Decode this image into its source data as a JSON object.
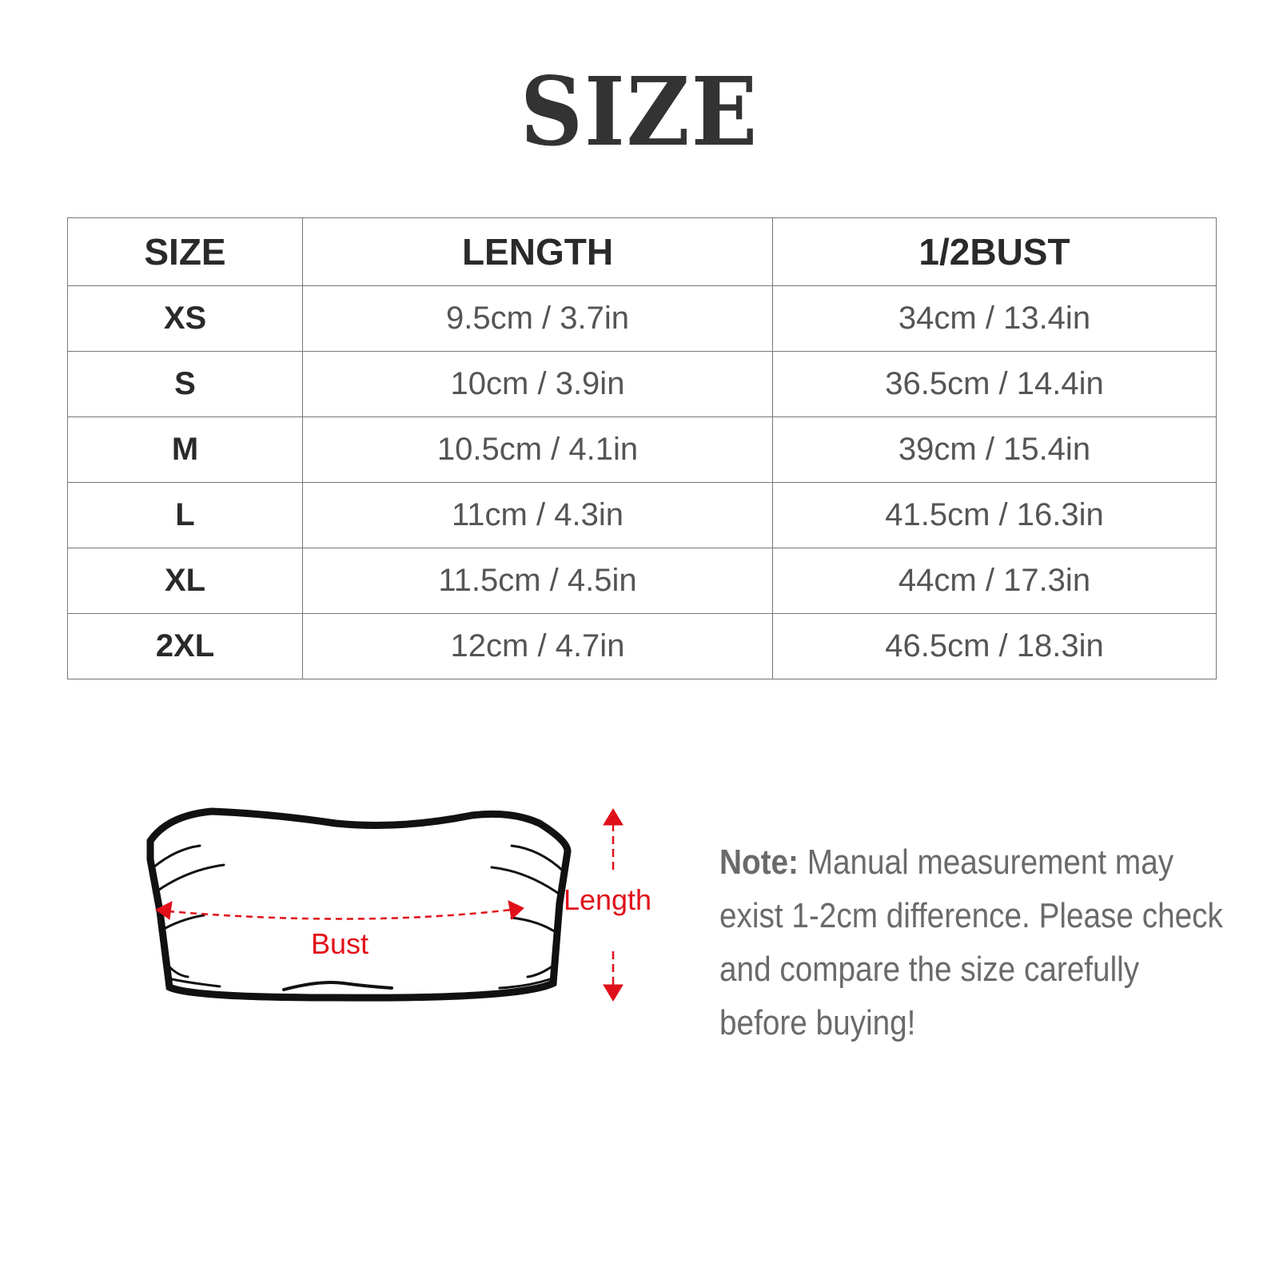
{
  "title": "SIZE",
  "table": {
    "headers": [
      "SIZE",
      "LENGTH",
      "1/2BUST"
    ],
    "rows": [
      [
        "XS",
        "9.5cm / 3.7in",
        "34cm / 13.4in"
      ],
      [
        "S",
        "10cm / 3.9in",
        "36.5cm / 14.4in"
      ],
      [
        "M",
        "10.5cm / 4.1in",
        "39cm / 15.4in"
      ],
      [
        "L",
        "11cm / 4.3in",
        "41.5cm / 16.3in"
      ],
      [
        "XL",
        "11.5cm / 4.5in",
        "44cm / 17.3in"
      ],
      [
        "2XL",
        "12cm / 4.7in",
        "46.5cm / 18.3in"
      ]
    ]
  },
  "diagram": {
    "bust_label": "Bust",
    "length_label": "Length",
    "accent_color": "#e0101a"
  },
  "note": {
    "label": "Note:",
    "text": " Manual measurement may exist 1-2cm difference. Please check and compare the size carefully before buying!"
  }
}
